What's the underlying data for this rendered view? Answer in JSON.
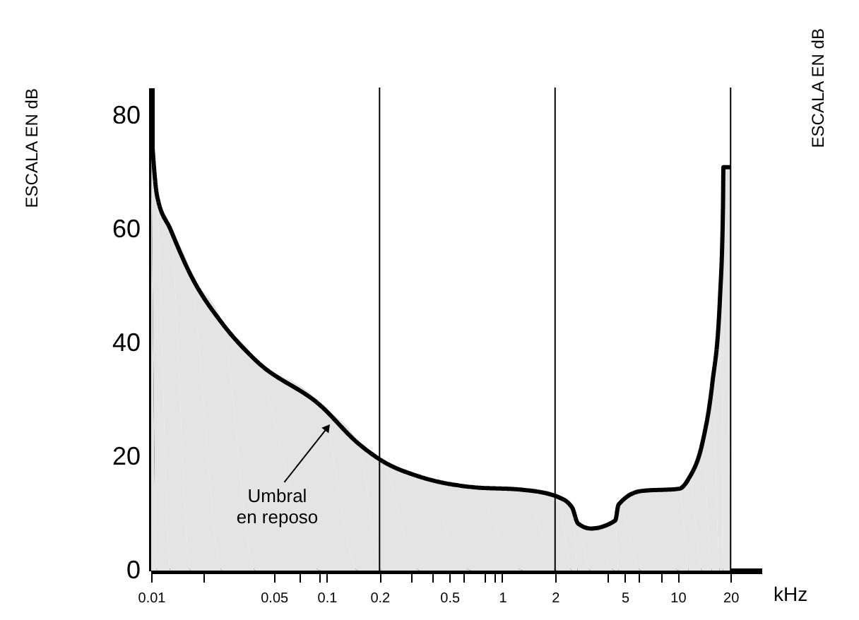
{
  "chart_data": {
    "type": "area",
    "ylabel": "ESCALA EN dB",
    "y2label": "ESCALA EN dB",
    "xlabel": "kHz",
    "x": [
      0.01,
      0.0108,
      0.0129,
      0.0168,
      0.0254,
      0.0394,
      0.0925,
      0.151,
      0.207,
      0.34,
      0.67,
      1.32,
      2.06,
      2.5,
      2.7,
      3.2,
      4.4,
      4.6,
      6.2,
      10.2,
      11.6,
      13.8,
      15.7,
      17.4,
      18.1,
      18.2,
      20
    ],
    "series": [
      {
        "color": "#000000",
        "values": [
          78,
          66,
          60,
          52,
          43.5,
          37,
          29,
          22.4,
          19.3,
          16.5,
          14.7,
          14.2,
          13,
          11.1,
          8.3,
          7.4,
          8.8,
          11.6,
          14,
          14.4,
          16.3,
          22.4,
          32.7,
          48,
          64,
          71,
          71
        ]
      }
    ],
    "log": "x",
    "xlim": [
      0.01,
      30
    ],
    "ylim": [
      0,
      85
    ],
    "xticks": [
      0.01,
      {
        "value": 0.02,
        "label": null
      },
      0.05,
      {
        "value": 0.07,
        "label": null
      },
      {
        "value": 0.09,
        "label": null
      },
      0.1,
      0.2,
      {
        "value": 0.3,
        "label": null
      },
      {
        "value": 0.4,
        "label": null
      },
      0.5,
      {
        "value": 0.6,
        "label": null
      },
      {
        "value": 0.8,
        "label": null
      },
      {
        "value": 0.9,
        "label": null
      },
      1,
      2,
      {
        "value": 4,
        "label": null
      },
      5,
      {
        "value": 6,
        "label": null
      },
      {
        "value": 8,
        "label": null
      },
      10,
      20
    ],
    "yticks": [
      0,
      20,
      40,
      60,
      80
    ],
    "ref_lines": [
      {
        "axis": "x",
        "value": 0.2,
        "label": null
      },
      {
        "axis": "x",
        "value": 2,
        "label": null
      },
      {
        "axis": "x",
        "value": 20,
        "label": null
      }
    ],
    "annotations": [
      {
        "text": "Umbral\nen reposo",
        "x": 0.1,
        "y": 25
      }
    ],
    "grid": false,
    "legend": false,
    "marker": "none",
    "line_style": "solid"
  }
}
